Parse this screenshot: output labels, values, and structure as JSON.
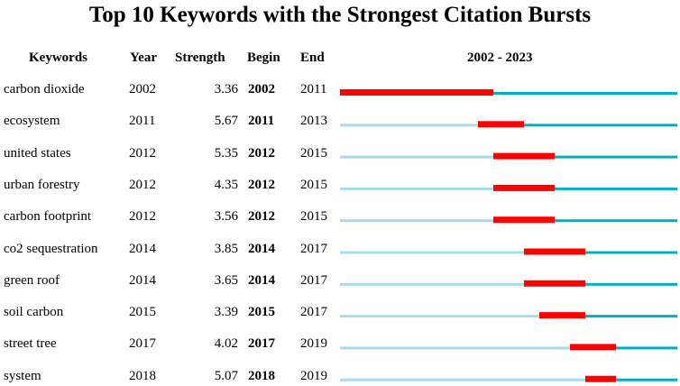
{
  "chart_data": {
    "type": "table",
    "title": "Top 10 Keywords with the Strongest Citation Bursts",
    "columns": [
      "Keywords",
      "Year",
      "Strength",
      "Begin",
      "End",
      "2002 - 2023"
    ],
    "range_label": "2002 - 2023",
    "start_year": 2002,
    "end_year": 2023,
    "colors": {
      "burst": "#ff0000",
      "active": "#00b0c0",
      "inactive": "#a8dde8"
    },
    "rows": [
      {
        "keyword": "carbon dioxide",
        "year": "2002",
        "strength": "3.36",
        "begin": "2002",
        "end": "2011"
      },
      {
        "keyword": "ecosystem",
        "year": "2011",
        "strength": "5.67",
        "begin": "2011",
        "end": "2013"
      },
      {
        "keyword": "united states",
        "year": "2012",
        "strength": "5.35",
        "begin": "2012",
        "end": "2015"
      },
      {
        "keyword": "urban forestry",
        "year": "2012",
        "strength": "4.35",
        "begin": "2012",
        "end": "2015"
      },
      {
        "keyword": "carbon footprint",
        "year": "2012",
        "strength": "3.56",
        "begin": "2012",
        "end": "2015"
      },
      {
        "keyword": "co2 sequestration",
        "year": "2014",
        "strength": "3.85",
        "begin": "2014",
        "end": "2017"
      },
      {
        "keyword": "green roof",
        "year": "2014",
        "strength": "3.65",
        "begin": "2014",
        "end": "2017"
      },
      {
        "keyword": "soil carbon",
        "year": "2015",
        "strength": "3.39",
        "begin": "2015",
        "end": "2017"
      },
      {
        "keyword": "street tree",
        "year": "2017",
        "strength": "4.02",
        "begin": "2017",
        "end": "2019"
      },
      {
        "keyword": "system",
        "year": "2018",
        "strength": "5.07",
        "begin": "2018",
        "end": "2019"
      }
    ]
  }
}
